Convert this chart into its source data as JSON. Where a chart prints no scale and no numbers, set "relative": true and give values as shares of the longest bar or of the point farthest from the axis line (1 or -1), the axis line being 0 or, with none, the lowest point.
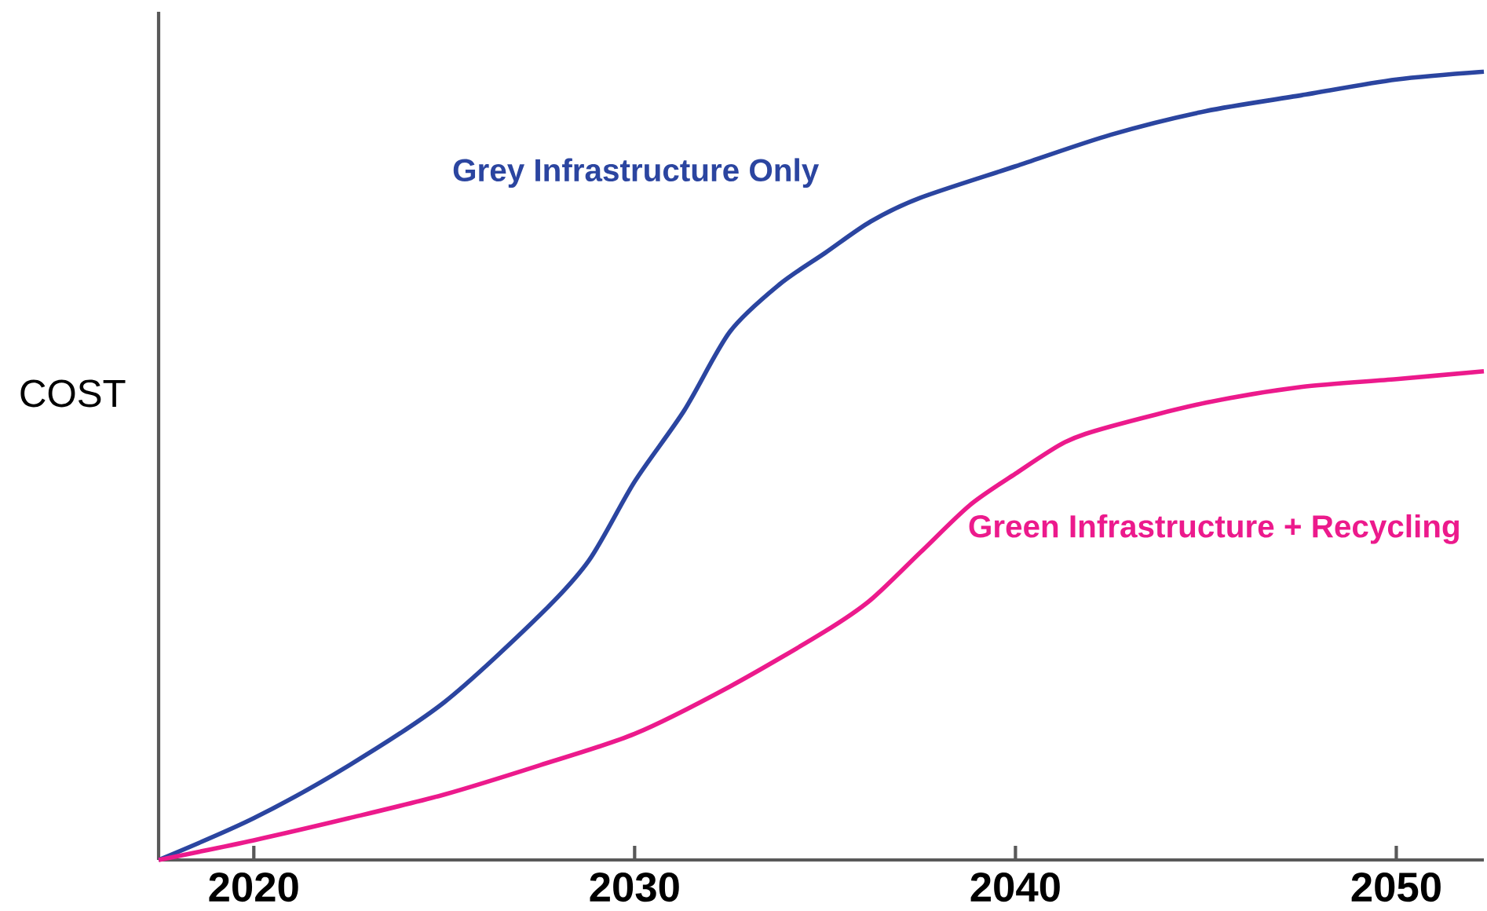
{
  "chart_data": {
    "type": "line",
    "relative": true,
    "ylabel": "COST",
    "x": [
      2017.5,
      2020,
      2022.5,
      2025,
      2027.5,
      2028.8,
      2030,
      2031.3,
      2032.5,
      2033.8,
      2035,
      2036.2,
      2037.5,
      2040,
      2042.5,
      2045,
      2047.5,
      2050,
      2052.3
    ],
    "series": [
      {
        "name": "Grey Infrastructure Only",
        "color": "#2b45a0",
        "values": [
          0,
          0.053,
          0.12,
          0.2,
          0.31,
          0.38,
          0.48,
          0.57,
          0.67,
          0.73,
          0.77,
          0.81,
          0.84,
          0.88,
          0.92,
          0.95,
          0.97,
          0.99,
          1.0
        ]
      },
      {
        "name": "Green Infrastructure + Recycling",
        "color": "#ec1a8c",
        "x": [
          2017.5,
          2020,
          2022.5,
          2025,
          2027.5,
          2030,
          2032.5,
          2035,
          2036.2,
          2037.5,
          2038.8,
          2040,
          2041.3,
          2042.5,
          2045,
          2047.5,
          2050,
          2052.3
        ],
        "values": [
          0,
          0.025,
          0.053,
          0.083,
          0.12,
          0.16,
          0.22,
          0.29,
          0.33,
          0.39,
          0.45,
          0.49,
          0.53,
          0.55,
          0.58,
          0.6,
          0.61,
          0.62
        ]
      }
    ],
    "xlim": [
      2017.5,
      2052.3
    ],
    "xticks": [
      2020,
      2030,
      2040,
      2050
    ]
  }
}
